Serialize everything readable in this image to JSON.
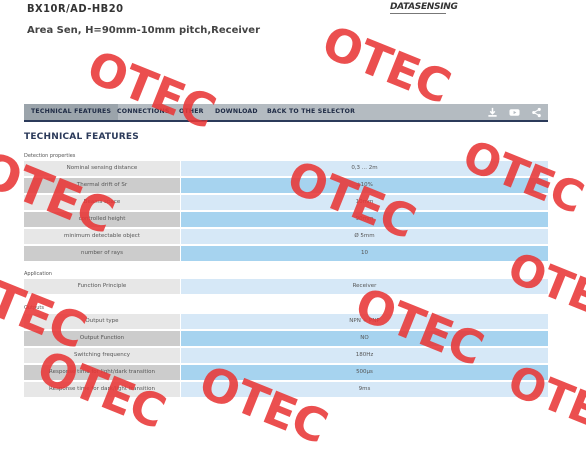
{
  "header": {
    "product_code": "BX10R/AD-HB20",
    "brand": "DATASENSING",
    "subtitle": "Area Sen, H=90mm-10mm pitch,Receiver"
  },
  "nav": {
    "items": [
      "TECHNICAL FEATURES",
      "CONNECTIONS",
      "OTHER",
      "DOWNLOAD",
      "BACK TO THE SELECTOR"
    ],
    "active_index": 0,
    "icons": [
      "download-icon",
      "youtube-icon",
      "share-icon"
    ]
  },
  "section_title": "TECHNICAL FEATURES",
  "groups": [
    {
      "label": "Detection properties",
      "rows": [
        {
          "name": "Nominal sensing distance",
          "value": "0,3 ... 2m"
        },
        {
          "name": "Thermal drift of Sr",
          "value": "±10%"
        },
        {
          "name": "Beams space",
          "value": "10mm"
        },
        {
          "name": "controlled height",
          "value": "90mm"
        },
        {
          "name": "minimum detectable object",
          "value": "Ø 5mm"
        },
        {
          "name": "number of rays",
          "value": "10"
        }
      ]
    },
    {
      "label": "Application",
      "rows": [
        {
          "name": "Function Principle",
          "value": "Receiver"
        }
      ]
    },
    {
      "label": "Outputs",
      "rows": [
        {
          "name": "Output type",
          "value": "NPN + PNP"
        },
        {
          "name": "Output Function",
          "value": "NO"
        },
        {
          "name": "Switching frequency",
          "value": "180Hz"
        },
        {
          "name": "Response time for light/dark transition",
          "value": "500µs"
        },
        {
          "name": "Response time for dark/light transition",
          "value": "9ms"
        }
      ]
    }
  ],
  "watermark": "OTEC",
  "colors": {
    "nav_bg": "#b4bbc1",
    "nav_active": "#9ba4ab",
    "nav_border": "#2b3a5a",
    "row_light_value": "#d6e8f7",
    "row_dark_value": "#a6d3ef",
    "watermark": "#e83737"
  }
}
